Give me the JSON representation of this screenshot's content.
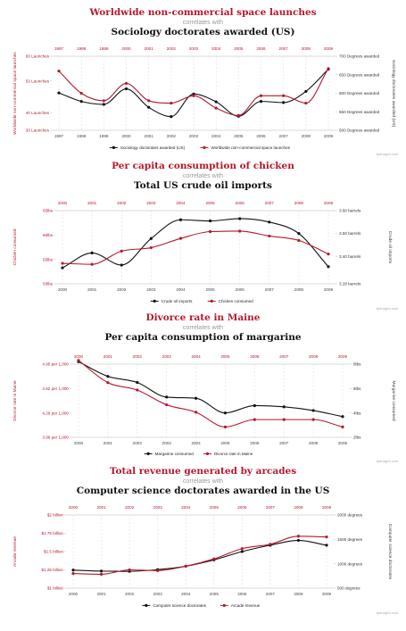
{
  "colors": {
    "red": "#b5192a",
    "black": "#111111",
    "grid": "#d8d8d8",
    "axis": "#b8b8b8",
    "watermark": "#aaaaaa"
  },
  "chart_data": [
    {
      "type": "line",
      "title_red": "Worldwide non-commercial space launches",
      "correlates": "correlates with",
      "title_black": "Sociology doctorates awarded (US)",
      "x": [
        "1997",
        "1998",
        "1999",
        "2000",
        "2001",
        "2002",
        "2003",
        "2004",
        "2005",
        "2006",
        "2007",
        "2008",
        "2009"
      ],
      "left_axis": {
        "label": "Worldwide non-commercial space launches",
        "ticks": [
          "33 Launches",
          "40 Launches",
          "53 Launches",
          "63 Launches"
        ],
        "tick_values": [
          33,
          40,
          53,
          63
        ],
        "range": [
          33,
          63
        ]
      },
      "right_axis": {
        "label": "Sociology doctorates awarded (US)",
        "ticks": [
          "500 Degrees awarded",
          "550 Degrees awarded",
          "600 Degrees awarded",
          "650 Degrees awarded",
          "700 Degrees awarded"
        ],
        "tick_values": [
          500,
          550,
          600,
          650,
          700
        ],
        "range": [
          500,
          700
        ]
      },
      "series": [
        {
          "name": "Sociology doctorates awarded (US)",
          "color": "black",
          "axis": "right",
          "values": [
            601,
            578,
            570,
            612,
            562,
            537,
            598,
            577,
            538,
            578,
            575,
            605,
            665
          ]
        },
        {
          "name": "Worldwide non-commercial space launches",
          "color": "red",
          "axis": "left",
          "values": [
            57,
            48,
            45,
            52,
            45,
            44,
            47,
            42,
            39,
            47,
            47,
            44,
            58
          ]
        }
      ],
      "legend": "bottom",
      "watermark": "tylervigen.com"
    },
    {
      "type": "line",
      "title_red": "Per capita consumption of chicken",
      "correlates": "correlates with",
      "title_black": "Total US crude oil imports",
      "x": [
        "2000",
        "2001",
        "2002",
        "2003",
        "2004",
        "2005",
        "2006",
        "2007",
        "2008",
        "2009"
      ],
      "left_axis": {
        "label": "Chicken consumed",
        "ticks": [
          "50lbs",
          "55lbs",
          "60lbs",
          "65lbs"
        ],
        "tick_values": [
          50,
          55,
          60,
          65
        ],
        "range": [
          50,
          65
        ]
      },
      "right_axis": {
        "label": "Crude oil imports",
        "ticks": [
          "3.28 barrels",
          "3.40 barrels",
          "3.50 barrels",
          "3.60 barrels"
        ],
        "tick_values": [
          3.28,
          3.4,
          3.5,
          3.6
        ],
        "range": [
          3.28,
          3.6
        ]
      },
      "series": [
        {
          "name": "Crude oil imports",
          "color": "black",
          "axis": "right",
          "values": [
            3.35,
            3.415,
            3.362,
            3.478,
            3.56,
            3.555,
            3.565,
            3.55,
            3.5,
            3.355
          ]
        },
        {
          "name": "Chicken consumed",
          "color": "red",
          "axis": "left",
          "values": [
            54.2,
            54,
            56.7,
            57.4,
            59.3,
            60.7,
            60.8,
            59.8,
            58.9,
            56.1
          ]
        }
      ],
      "legend": "bottom",
      "watermark": "tylervigen.com"
    },
    {
      "type": "line",
      "title_red": "Divorce rate in Maine",
      "correlates": "correlates with",
      "title_black": "Per capita consumption of margarine",
      "x": [
        "2000",
        "2001",
        "2002",
        "2003",
        "2004",
        "2005",
        "2006",
        "2007",
        "2008",
        "2009"
      ],
      "left_axis": {
        "label": "Divorce rate in Maine",
        "ticks": [
          "3.96 per 1,000",
          "4.29 per 1,000",
          "4.62 per 1,000",
          "4.95 per 1,000"
        ],
        "tick_values": [
          3.96,
          4.29,
          4.62,
          4.95
        ],
        "range": [
          3.96,
          4.95
        ]
      },
      "right_axis": {
        "label": "Margarine consumed",
        "ticks": [
          "2lbs",
          "4lbs",
          "6lbs",
          "8lbs"
        ],
        "tick_values": [
          2,
          4,
          6,
          8
        ],
        "range": [
          2,
          8
        ]
      },
      "series": [
        {
          "name": "Margarine consumed",
          "color": "black",
          "axis": "right",
          "values": [
            8.2,
            7,
            6.5,
            5.3,
            5.2,
            4.0,
            4.6,
            4.5,
            4.2,
            3.7
          ]
        },
        {
          "name": "Divorce rate in Maine",
          "color": "red",
          "axis": "left",
          "values": [
            5.0,
            4.7,
            4.6,
            4.4,
            4.3,
            4.1,
            4.2,
            4.2,
            4.2,
            4.1
          ]
        }
      ],
      "legend": "bottom",
      "watermark": "tylervigen.com"
    },
    {
      "type": "line",
      "title_red": "Total revenue generated by arcades",
      "correlates": "correlates with",
      "title_black": "Computer science doctorates awarded in the US",
      "x": [
        "2000",
        "2001",
        "2002",
        "2003",
        "2004",
        "2005",
        "2006",
        "2007",
        "2008",
        "2009"
      ],
      "left_axis": {
        "label": "Arcade revenue",
        "ticks": [
          "$1 billion",
          "$1.25 billion",
          "$1.5 billion",
          "$1.75 billion",
          "$2 billion"
        ],
        "tick_values": [
          1,
          1.25,
          1.5,
          1.75,
          2
        ],
        "range": [
          1,
          2
        ]
      },
      "right_axis": {
        "label": "Computer science doctorates",
        "ticks": [
          "500 degrees",
          "1000 degrees",
          "1500 degrees",
          "2000 degrees"
        ],
        "tick_values": [
          500,
          1000,
          1500,
          2000
        ],
        "range": [
          500,
          2000
        ]
      },
      "series": [
        {
          "name": "Computer science doctorates",
          "color": "black",
          "axis": "right",
          "values": [
            870,
            850,
            845,
            880,
            950,
            1080,
            1250,
            1380,
            1480,
            1380
          ]
        },
        {
          "name": "Arcade revenue",
          "color": "red",
          "axis": "left",
          "values": [
            1.2,
            1.19,
            1.25,
            1.24,
            1.3,
            1.4,
            1.54,
            1.6,
            1.71,
            1.7
          ]
        }
      ],
      "legend": "bottom",
      "watermark": "tylervigen.com"
    }
  ]
}
